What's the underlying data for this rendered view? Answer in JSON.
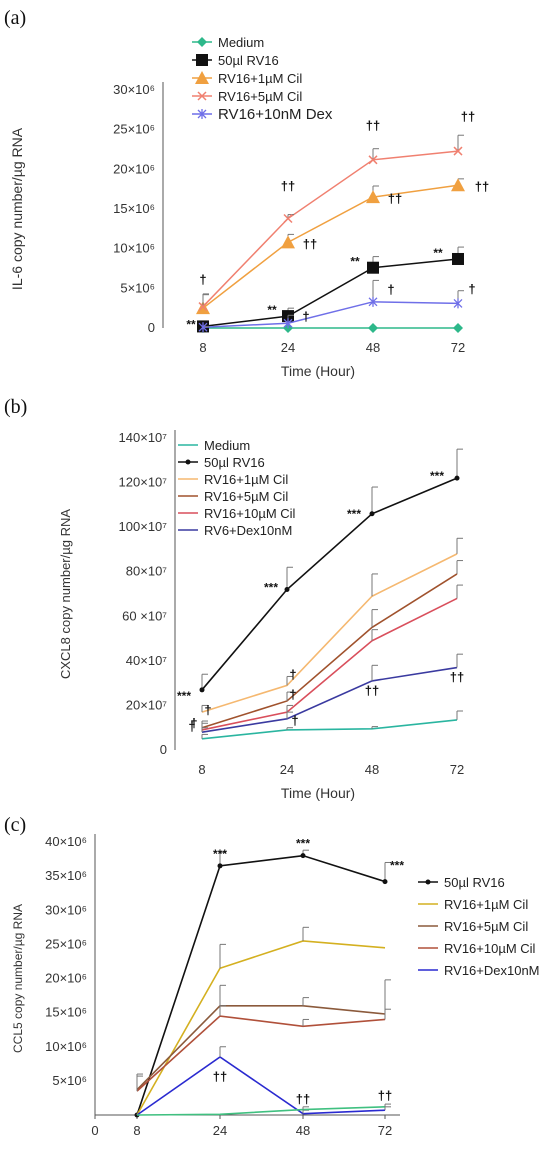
{
  "chart_data": [
    {
      "type": "line",
      "panel_label": "(a)",
      "xlabel": "Time (Hour)",
      "ylabel": "IL-6 copy number/µg RNA",
      "x": [
        8,
        24,
        48,
        72
      ],
      "x_tick_labels": [
        "8",
        "24",
        "48",
        "72"
      ],
      "ylim": [
        0,
        30000000
      ],
      "y_tick_values": [
        0,
        5000000,
        10000000,
        15000000,
        20000000,
        25000000,
        30000000
      ],
      "y_tick_labels": [
        "0",
        "5×10⁶",
        "10×10⁶",
        "15×10⁶",
        "20×10⁶",
        "25×10⁶",
        "30×10⁶"
      ],
      "legend_position": "top-left",
      "series": [
        {
          "name": "Medium",
          "color": "#2db88a",
          "marker": "diamond",
          "values": [
            0,
            0,
            0,
            0
          ],
          "errors": [
            0,
            0,
            0,
            0
          ],
          "annotations": [
            "",
            "",
            "",
            ""
          ]
        },
        {
          "name": "50µl RV16",
          "color": "#111111",
          "marker": "square",
          "values": [
            200000,
            1500000,
            7600000,
            8700000
          ],
          "errors": [
            200000,
            1000000,
            1400000,
            1500000
          ],
          "annotations": [
            "**",
            "**",
            "**",
            "**"
          ]
        },
        {
          "name": "RV16+1µM Cil",
          "color": "#f0a040",
          "marker": "triangle",
          "values": [
            2500000,
            10800000,
            16500000,
            18000000
          ],
          "errors": [
            1800000,
            1000000,
            1400000,
            800000
          ],
          "annotations": [
            "†",
            "††",
            "††",
            "††"
          ]
        },
        {
          "name": "RV16+5µM Cil",
          "color": "#f08070",
          "marker": "x",
          "values": [
            2700000,
            13800000,
            21200000,
            22300000
          ],
          "errors": [
            1500000,
            500000,
            1400000,
            2000000
          ],
          "annotations": [
            "",
            "††",
            "††",
            "††"
          ]
        },
        {
          "name": "RV16+10nM Dex",
          "color": "#6f6fe8",
          "marker": "star",
          "values": [
            100000,
            600000,
            3300000,
            3100000
          ],
          "errors": [
            100000,
            1000000,
            2700000,
            1600000
          ],
          "annotations": [
            "",
            "†",
            "†",
            "†"
          ]
        }
      ]
    },
    {
      "type": "line",
      "panel_label": "(b)",
      "xlabel": "Time (Hour)",
      "ylabel": "CXCL8 copy number/µg RNA",
      "x": [
        8,
        24,
        48,
        72
      ],
      "x_tick_labels": [
        "8",
        "24",
        "48",
        "72"
      ],
      "ylim": [
        0,
        1400000000
      ],
      "y_tick_values": [
        0,
        200000000,
        400000000,
        600000000,
        800000000,
        1000000000,
        1200000000,
        1400000000
      ],
      "y_tick_labels": [
        "0",
        "20×10⁷",
        "40×10⁷",
        "60 ×10⁷",
        "80×10⁷",
        "100×10⁷",
        "120×10⁷",
        "140×10⁷"
      ],
      "legend_position": "top-left",
      "series": [
        {
          "name": "Medium",
          "color": "#2ab5a0",
          "marker": "none",
          "values": [
            50000000,
            90000000,
            95000000,
            135000000
          ],
          "errors": [
            20000000,
            10000000,
            10000000,
            40000000
          ],
          "annotations": [
            "",
            "",
            "",
            ""
          ]
        },
        {
          "name": "50µl RV16",
          "color": "#111111",
          "marker": "dot",
          "values": [
            270000000,
            720000000,
            1060000000,
            1220000000
          ],
          "errors": [
            70000000,
            100000000,
            120000000,
            130000000
          ],
          "annotations": [
            "***",
            "***",
            "***",
            "***"
          ]
        },
        {
          "name": "RV16+1µM Cil",
          "color": "#f5b870",
          "marker": "none",
          "values": [
            170000000,
            290000000,
            690000000,
            880000000
          ],
          "errors": [
            30000000,
            40000000,
            100000000,
            70000000
          ],
          "annotations": [
            "",
            "",
            "",
            ""
          ]
        },
        {
          "name": "RV16+5µM Cil",
          "color": "#a0522d",
          "marker": "none",
          "values": [
            100000000,
            220000000,
            550000000,
            790000000
          ],
          "errors": [
            30000000,
            40000000,
            80000000,
            60000000
          ],
          "annotations": [
            "",
            "",
            "",
            ""
          ]
        },
        {
          "name": "RV16+10µM Cil",
          "color": "#d94f5c",
          "marker": "none",
          "values": [
            90000000,
            170000000,
            490000000,
            680000000
          ],
          "errors": [
            30000000,
            30000000,
            50000000,
            60000000
          ],
          "annotations": [
            "",
            "",
            "",
            ""
          ]
        },
        {
          "name": "RV6+Dex10nM",
          "color": "#3a3aa0",
          "marker": "none",
          "values": [
            80000000,
            140000000,
            310000000,
            370000000
          ],
          "errors": [
            20000000,
            30000000,
            70000000,
            60000000
          ],
          "annotations": [
            "†",
            "†",
            "††",
            "††"
          ]
        }
      ],
      "extra_markers": [
        {
          "x": 8,
          "y": 160000000,
          "text": "†"
        },
        {
          "x": 8,
          "y": 110000000,
          "text": "†"
        },
        {
          "x": 24,
          "y": 300000000,
          "text": "†"
        },
        {
          "x": 24,
          "y": 220000000,
          "text": "†"
        }
      ]
    },
    {
      "type": "line",
      "panel_label": "(c)",
      "xlabel": "",
      "ylabel": "CCL5 copy number/µg RNA",
      "x": [
        8,
        24,
        48,
        72
      ],
      "x_tick_labels": [
        "0",
        "8",
        "24",
        "48",
        "72"
      ],
      "x_tick_values": [
        0,
        8,
        24,
        48,
        72
      ],
      "ylim": [
        0,
        40000000
      ],
      "y_tick_values": [
        5000000,
        10000000,
        15000000,
        20000000,
        25000000,
        30000000,
        35000000,
        40000000
      ],
      "y_tick_labels": [
        "5×10⁶",
        "10×10⁶",
        "15×10⁶",
        "20×10⁶",
        "25×10⁶",
        "30×10⁶",
        "35×10⁶",
        "40×10⁶"
      ],
      "legend_position": "right",
      "series": [
        {
          "name": "50µl RV16",
          "color": "#111111",
          "marker": "dot",
          "values": [
            0,
            36500000,
            38000000,
            34200000
          ],
          "errors": [
            0,
            2000000,
            800000,
            2800000
          ],
          "annotations": [
            "",
            "***",
            "***",
            "***"
          ]
        },
        {
          "name": "RV16+1µM Cil",
          "color": "#d4b020",
          "marker": "none",
          "values": [
            0,
            21500000,
            25500000,
            24500000
          ],
          "errors": [
            0,
            3500000,
            2000000,
            0
          ],
          "annotations": [
            "",
            "",
            "",
            ""
          ]
        },
        {
          "name": "RV16+5µM Cil",
          "color": "#8b5a3c",
          "marker": "none",
          "values": [
            3700000,
            16000000,
            16000000,
            14800000
          ],
          "errors": [
            2000000,
            3000000,
            1200000,
            5000000
          ],
          "annotations": [
            "",
            "",
            "",
            ""
          ]
        },
        {
          "name": "RV16+10µM Cil",
          "color": "#b0503a",
          "marker": "none",
          "values": [
            3500000,
            14500000,
            13000000,
            14000000
          ],
          "errors": [
            2500000,
            1500000,
            1000000,
            1500000
          ],
          "annotations": [
            "",
            "",
            "",
            ""
          ]
        },
        {
          "name": "RV16+Dex10nM",
          "color": "#2a2ad0",
          "marker": "none",
          "values": [
            0,
            8500000,
            200000,
            700000
          ],
          "errors": [
            0,
            1500000,
            500000,
            500000
          ],
          "annotations": [
            "",
            "††",
            "††",
            "††"
          ]
        },
        {
          "name": "",
          "color": "#40c080",
          "marker": "none",
          "values": [
            0,
            100000,
            800000,
            1200000
          ],
          "errors": [
            0,
            0,
            400000,
            400000
          ],
          "annotations": [
            "",
            "",
            "",
            ""
          ]
        }
      ]
    }
  ]
}
